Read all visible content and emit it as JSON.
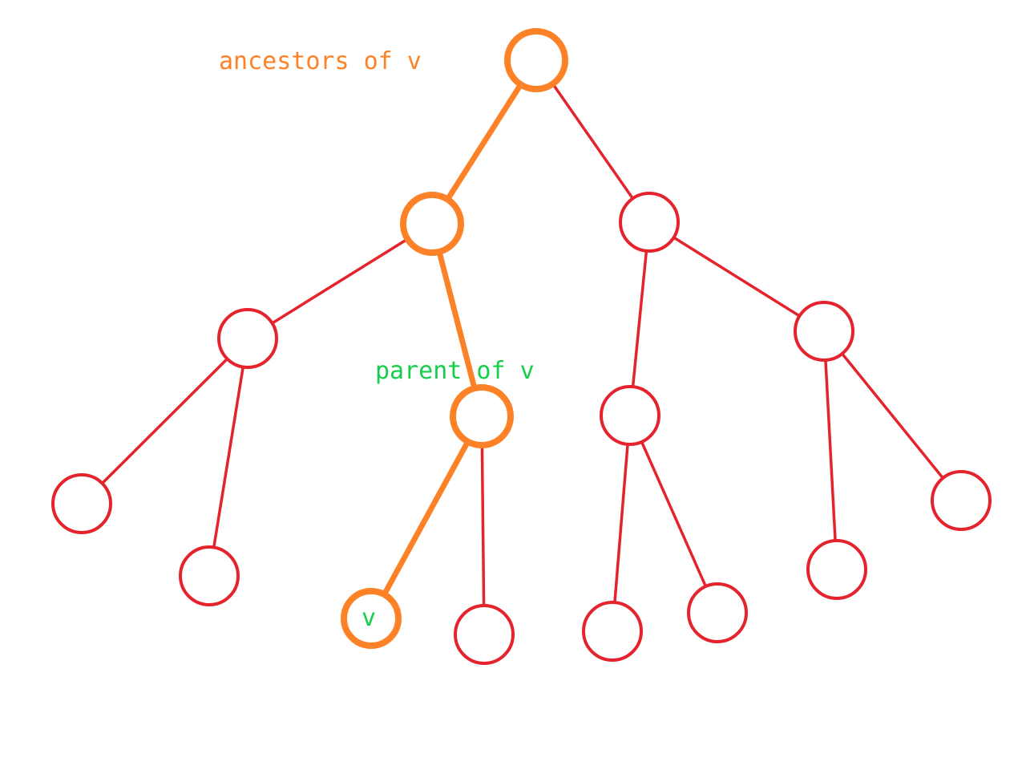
{
  "labels": {
    "ancestors": "ancestors of v",
    "parent": "parent of v",
    "node_v": "v"
  },
  "colors": {
    "highlight": "#fd8227",
    "normal": "#e5232d",
    "parent_label": "#15cf4b",
    "background": "#ffffff"
  },
  "nodes": [
    {
      "id": "root",
      "role": "ancestor"
    },
    {
      "id": "ancestor-2",
      "role": "ancestor"
    },
    {
      "id": "root-right-child",
      "role": "normal"
    },
    {
      "id": "ancestor-2-left-child",
      "role": "normal"
    },
    {
      "id": "parent",
      "role": "ancestor"
    },
    {
      "id": "right-left-child",
      "role": "normal"
    },
    {
      "id": "right-right-child",
      "role": "normal"
    },
    {
      "id": "leaf-1",
      "role": "normal"
    },
    {
      "id": "leaf-2",
      "role": "normal"
    },
    {
      "id": "v",
      "role": "target"
    },
    {
      "id": "leaf-4",
      "role": "normal"
    },
    {
      "id": "leaf-5",
      "role": "normal"
    },
    {
      "id": "leaf-6",
      "role": "normal"
    },
    {
      "id": "leaf-7",
      "role": "normal"
    },
    {
      "id": "leaf-8",
      "role": "normal"
    }
  ],
  "edges": [
    {
      "from": "root",
      "to": "ancestor-2",
      "highlight": true
    },
    {
      "from": "root",
      "to": "root-right-child",
      "highlight": false
    },
    {
      "from": "ancestor-2",
      "to": "ancestor-2-left-child",
      "highlight": false
    },
    {
      "from": "ancestor-2",
      "to": "parent",
      "highlight": true
    },
    {
      "from": "root-right-child",
      "to": "right-left-child",
      "highlight": false
    },
    {
      "from": "root-right-child",
      "to": "right-right-child",
      "highlight": false
    },
    {
      "from": "ancestor-2-left-child",
      "to": "leaf-1",
      "highlight": false
    },
    {
      "from": "ancestor-2-left-child",
      "to": "leaf-2",
      "highlight": false
    },
    {
      "from": "parent",
      "to": "v",
      "highlight": true
    },
    {
      "from": "parent",
      "to": "leaf-4",
      "highlight": false
    },
    {
      "from": "right-left-child",
      "to": "leaf-5",
      "highlight": false
    },
    {
      "from": "right-left-child",
      "to": "leaf-6",
      "highlight": false
    },
    {
      "from": "right-right-child",
      "to": "leaf-7",
      "highlight": false
    },
    {
      "from": "right-right-child",
      "to": "leaf-8",
      "highlight": false
    }
  ]
}
